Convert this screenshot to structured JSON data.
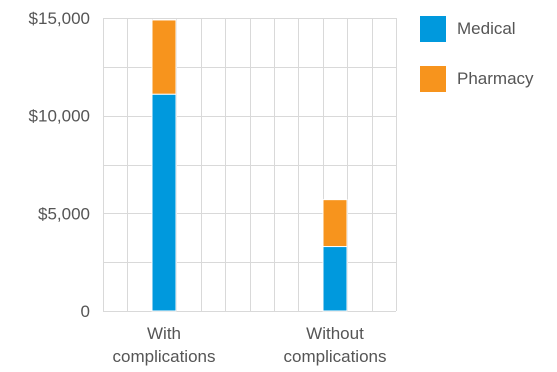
{
  "chart_data": {
    "type": "bar",
    "stacked": true,
    "categories": [
      [
        "With",
        "complications"
      ],
      [
        "Without",
        "complications"
      ]
    ],
    "series": [
      {
        "name": "Medical",
        "color": "#0099DD",
        "values": [
          11100,
          3300
        ]
      },
      {
        "name": "Pharmacy",
        "color": "#F7941D",
        "values": [
          3800,
          2400
        ]
      }
    ],
    "yticks": [
      "0",
      "$5,000",
      "$10,000",
      "$15,000"
    ],
    "ytick_values": [
      0,
      5000,
      10000,
      15000
    ],
    "ylim": [
      0,
      15000
    ],
    "title": "",
    "xlabel": "",
    "ylabel": "",
    "grid": true,
    "legend_position": "right"
  }
}
